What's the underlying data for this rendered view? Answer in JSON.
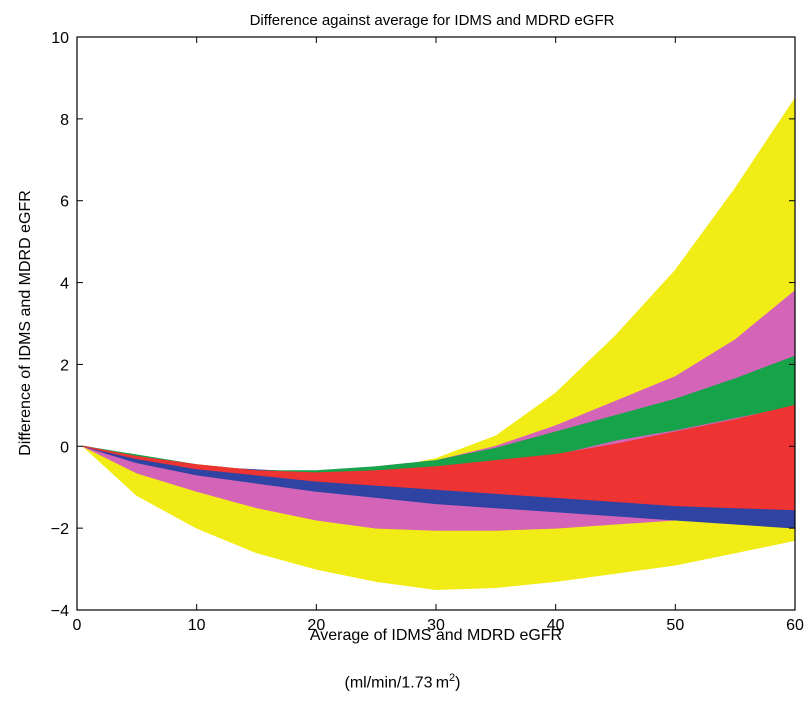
{
  "chart_data": {
    "type": "scatter",
    "title": "Difference against average for IDMS and MDRD eGFR",
    "xlabel": "Average of IDMS and MDRD eGFR",
    "ylabel": "Difference of IDMS and MDRD eGFR",
    "unit_text": "(ml/min/1.73 m",
    "unit_sup": "2",
    "unit_close": ")",
    "xlim": [
      0,
      60
    ],
    "ylim": [
      -4,
      10
    ],
    "x_ticks": [
      "0",
      "10",
      "20",
      "30",
      "40",
      "50",
      "60"
    ],
    "y_ticks": [
      "−4",
      "−2",
      "0",
      "2",
      "4",
      "6",
      "8",
      "10"
    ],
    "grid": false,
    "series": [
      {
        "color": "#f2ec16",
        "upper": [
          [
            0.5,
            0
          ],
          [
            5,
            -0.25
          ],
          [
            10,
            -0.45
          ],
          [
            15,
            -0.6
          ],
          [
            20,
            -0.65
          ],
          [
            25,
            -0.6
          ],
          [
            30,
            -0.3
          ],
          [
            35,
            0.25
          ],
          [
            40,
            1.3
          ],
          [
            45,
            2.7
          ],
          [
            50,
            4.3
          ],
          [
            55,
            6.3
          ],
          [
            60,
            8.5
          ]
        ],
        "lower": [
          [
            0.5,
            0
          ],
          [
            5,
            -1.2
          ],
          [
            10,
            -2.0
          ],
          [
            15,
            -2.6
          ],
          [
            20,
            -3.0
          ],
          [
            25,
            -3.3
          ],
          [
            30,
            -3.5
          ],
          [
            35,
            -3.45
          ],
          [
            40,
            -3.3
          ],
          [
            45,
            -3.1
          ],
          [
            50,
            -2.9
          ],
          [
            55,
            -2.6
          ],
          [
            60,
            -2.3
          ]
        ]
      },
      {
        "color": "#d464b8",
        "upper": [
          [
            0.5,
            0
          ],
          [
            10,
            -0.5
          ],
          [
            20,
            -0.65
          ],
          [
            30,
            -0.35
          ],
          [
            35,
            0
          ],
          [
            40,
            0.5
          ],
          [
            45,
            1.1
          ],
          [
            50,
            1.7
          ],
          [
            55,
            2.6
          ],
          [
            60,
            3.8
          ]
        ],
        "lower": [
          [
            0.5,
            0
          ],
          [
            5,
            -0.65
          ],
          [
            10,
            -1.1
          ],
          [
            15,
            -1.5
          ],
          [
            20,
            -1.8
          ],
          [
            25,
            -2.0
          ],
          [
            30,
            -2.05
          ],
          [
            35,
            -2.05
          ],
          [
            40,
            -2.0
          ],
          [
            45,
            -1.9
          ],
          [
            50,
            -1.8
          ],
          [
            55,
            -1.6
          ],
          [
            60,
            -1.5
          ]
        ]
      },
      {
        "color": "#2f43a3",
        "upper": [
          [
            0.5,
            0
          ],
          [
            10,
            -0.5
          ],
          [
            20,
            -0.65
          ],
          [
            30,
            -0.55
          ],
          [
            40,
            -0.6
          ],
          [
            50,
            -0.75
          ],
          [
            60,
            -0.9
          ]
        ],
        "lower": [
          [
            0.5,
            0
          ],
          [
            5,
            -0.4
          ],
          [
            10,
            -0.7
          ],
          [
            15,
            -0.9
          ],
          [
            20,
            -1.1
          ],
          [
            25,
            -1.25
          ],
          [
            30,
            -1.4
          ],
          [
            35,
            -1.5
          ],
          [
            40,
            -1.6
          ],
          [
            45,
            -1.7
          ],
          [
            50,
            -1.8
          ],
          [
            55,
            -1.9
          ],
          [
            60,
            -2.0
          ]
        ]
      },
      {
        "color": "#16a34a",
        "upper": [
          [
            0.5,
            0
          ],
          [
            10,
            -0.45
          ],
          [
            15,
            -0.6
          ],
          [
            20,
            -0.6
          ],
          [
            25,
            -0.5
          ],
          [
            30,
            -0.35
          ],
          [
            35,
            -0.05
          ],
          [
            40,
            0.35
          ],
          [
            45,
            0.75
          ],
          [
            50,
            1.15
          ],
          [
            55,
            1.65
          ],
          [
            60,
            2.2
          ]
        ],
        "lower": [
          [
            0.5,
            0
          ],
          [
            10,
            -0.5
          ],
          [
            20,
            -0.7
          ],
          [
            30,
            -0.65
          ],
          [
            35,
            -0.45
          ],
          [
            40,
            -0.2
          ],
          [
            45,
            0.15
          ],
          [
            50,
            0.4
          ],
          [
            55,
            0.7
          ],
          [
            60,
            1.0
          ]
        ]
      },
      {
        "color": "#ee3333",
        "upper": [
          [
            0.5,
            0
          ],
          [
            5,
            -0.25
          ],
          [
            10,
            -0.45
          ],
          [
            15,
            -0.6
          ],
          [
            20,
            -0.65
          ],
          [
            25,
            -0.6
          ],
          [
            30,
            -0.5
          ],
          [
            35,
            -0.35
          ],
          [
            40,
            -0.2
          ],
          [
            45,
            0.05
          ],
          [
            50,
            0.35
          ],
          [
            55,
            0.65
          ],
          [
            60,
            1.0
          ]
        ],
        "lower": [
          [
            0.5,
            0
          ],
          [
            5,
            -0.3
          ],
          [
            10,
            -0.55
          ],
          [
            15,
            -0.7
          ],
          [
            20,
            -0.85
          ],
          [
            25,
            -0.95
          ],
          [
            30,
            -1.05
          ],
          [
            35,
            -1.15
          ],
          [
            40,
            -1.25
          ],
          [
            45,
            -1.35
          ],
          [
            50,
            -1.45
          ],
          [
            55,
            -1.5
          ],
          [
            60,
            -1.55
          ]
        ]
      }
    ]
  }
}
